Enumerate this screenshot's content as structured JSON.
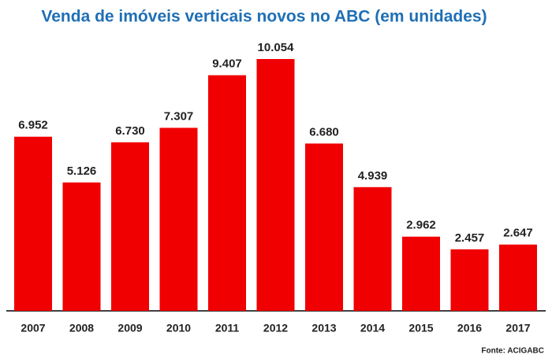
{
  "chart_data": {
    "type": "bar",
    "title": "Venda de imóveis verticais novos no ABC (em unidades)",
    "categories": [
      "2007",
      "2008",
      "2009",
      "2010",
      "2011",
      "2012",
      "2013",
      "2014",
      "2015",
      "2016",
      "2017"
    ],
    "values": [
      6952,
      5126,
      6730,
      7307,
      9407,
      10054,
      6680,
      4939,
      2962,
      2457,
      2647
    ],
    "value_labels": [
      "6.952",
      "5.126",
      "6.730",
      "7.307",
      "9.407",
      "10.054",
      "6.680",
      "4.939",
      "2.962",
      "2.457",
      "2.647"
    ],
    "color": "#f00000",
    "source": "Fonte: ACIGABC"
  }
}
